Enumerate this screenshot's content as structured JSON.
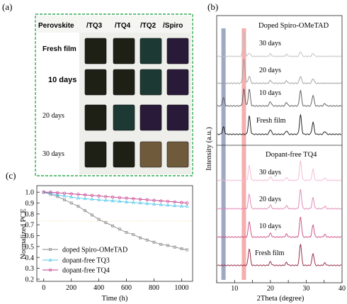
{
  "panel_a": {
    "label": "(a)",
    "columns": [
      "Perovskite",
      "/TQ3",
      "/TQ4",
      "/TQ2",
      "/Spiro"
    ],
    "rows": [
      "Fresh film",
      "10 days",
      "20 days",
      "30 days"
    ],
    "colors": {
      "sample_dark": "#1e2016",
      "sample_teal": "#1c3a33",
      "sample_violet": "#2a1a3a",
      "degraded": "#6f5a3c",
      "border_green": "#33aa55"
    }
  },
  "panel_b": {
    "label": "(b)",
    "groups": [
      "Doped Spiro-OMeTAD",
      "Dopant-free TQ4"
    ],
    "curve_labels_top": [
      "30 days",
      "20 days",
      "10 days",
      "Fresh film"
    ],
    "curve_labels_bottom": [
      "30 days",
      "20 days",
      "10 days",
      "Fresh film"
    ],
    "ylabel": "Intensity (a.u.)",
    "xlabel": "2Theta (degree)",
    "colors": {
      "gray_band": "#8e9ab8",
      "red_band": "#f3a0a0",
      "top_series": [
        "#bdbdbd",
        "#9a9a9a",
        "#555555",
        "#111111"
      ],
      "bottom_series": [
        "#f2b6d2",
        "#e07fb0",
        "#c8447c",
        "#8e1c3a"
      ]
    }
  },
  "panel_c": {
    "label": "(c)"
  },
  "chart_data": [
    {
      "type": "line",
      "title": "",
      "xlabel": "2Theta (degree)",
      "ylabel": "Intensity (a.u.)",
      "xlim": [
        5,
        40
      ],
      "x_ticks": [
        5,
        10,
        15,
        20,
        25,
        30,
        35,
        40
      ],
      "highlight_bands": [
        {
          "center": 6.9,
          "color": "gray"
        },
        {
          "center": 12.6,
          "color": "red"
        }
      ],
      "peaks_reference": [
        6.9,
        12.6,
        14.1,
        20.0,
        24.5,
        28.4,
        31.9,
        35.2,
        40.6
      ],
      "series": [
        {
          "name": "Doped Spiro-OMeTAD 30 days",
          "peaks": [
            [
              12.6,
              1.0
            ],
            [
              14.1,
              0.15
            ],
            [
              20.0,
              0.1
            ],
            [
              24.5,
              0.08
            ],
            [
              28.4,
              0.2
            ],
            [
              31.9,
              0.12
            ]
          ]
        },
        {
          "name": "Doped Spiro-OMeTAD 20 days",
          "peaks": [
            [
              12.6,
              1.0
            ],
            [
              14.1,
              0.3
            ],
            [
              20.0,
              0.12
            ],
            [
              24.5,
              0.1
            ],
            [
              28.4,
              0.3
            ],
            [
              31.9,
              0.2
            ]
          ]
        },
        {
          "name": "Doped Spiro-OMeTAD 10 days",
          "peaks": [
            [
              6.9,
              0.35
            ],
            [
              12.6,
              0.7
            ],
            [
              14.1,
              0.7
            ],
            [
              20.0,
              0.18
            ],
            [
              24.5,
              0.15
            ],
            [
              28.4,
              0.65
            ],
            [
              31.9,
              0.45
            ],
            [
              35.2,
              0.1
            ]
          ]
        },
        {
          "name": "Doped Spiro-OMeTAD Fresh film",
          "peaks": [
            [
              6.9,
              0.3
            ],
            [
              14.1,
              0.75
            ],
            [
              20.0,
              0.2
            ],
            [
              24.5,
              0.15
            ],
            [
              28.4,
              0.8
            ],
            [
              31.9,
              0.5
            ],
            [
              35.2,
              0.12
            ]
          ]
        },
        {
          "name": "Dopant-free TQ4 30 days",
          "peaks": [
            [
              14.1,
              0.6
            ],
            [
              20.0,
              0.15
            ],
            [
              24.5,
              0.12
            ],
            [
              28.4,
              0.8
            ],
            [
              31.9,
              0.45
            ],
            [
              35.2,
              0.1
            ]
          ]
        },
        {
          "name": "Dopant-free TQ4 20 days",
          "peaks": [
            [
              14.1,
              0.6
            ],
            [
              20.0,
              0.15
            ],
            [
              24.5,
              0.12
            ],
            [
              28.4,
              0.8
            ],
            [
              31.9,
              0.45
            ],
            [
              35.2,
              0.1
            ]
          ]
        },
        {
          "name": "Dopant-free TQ4 10 days",
          "peaks": [
            [
              14.1,
              0.65
            ],
            [
              20.0,
              0.15
            ],
            [
              24.5,
              0.12
            ],
            [
              28.4,
              0.85
            ],
            [
              31.9,
              0.5
            ],
            [
              35.2,
              0.1
            ]
          ]
        },
        {
          "name": "Dopant-free TQ4 Fresh film",
          "peaks": [
            [
              14.1,
              0.7
            ],
            [
              20.0,
              0.15
            ],
            [
              24.5,
              0.12
            ],
            [
              28.4,
              0.9
            ],
            [
              31.9,
              0.5
            ],
            [
              35.2,
              0.1
            ]
          ]
        }
      ]
    },
    {
      "type": "line",
      "title": "",
      "xlabel": "Time (h)",
      "ylabel": "Normalized PCE",
      "xlim": [
        -50,
        1080
      ],
      "ylim": [
        0.18,
        1.06
      ],
      "x_ticks": [
        0,
        200,
        400,
        600,
        800,
        1000
      ],
      "y_ticks": [
        0.2,
        0.3,
        0.4,
        0.5,
        0.6,
        0.7,
        0.8,
        0.9,
        1.0
      ],
      "legend_position": "bottom-left",
      "series": [
        {
          "name": "doped Spiro-OMeTAD",
          "color": "#8a8a8a",
          "marker": "square",
          "x": [
            0,
            50,
            100,
            150,
            200,
            250,
            300,
            350,
            400,
            450,
            500,
            550,
            600,
            650,
            700,
            750,
            800,
            850,
            900,
            950,
            1000,
            1040
          ],
          "y": [
            1.0,
            0.98,
            0.96,
            0.93,
            0.9,
            0.87,
            0.83,
            0.79,
            0.75,
            0.72,
            0.69,
            0.66,
            0.63,
            0.61,
            0.58,
            0.56,
            0.54,
            0.52,
            0.51,
            0.495,
            0.48,
            0.47
          ]
        },
        {
          "name": "dopant-free TQ3",
          "color": "#55c8ee",
          "marker": "triangle",
          "x": [
            0,
            50,
            100,
            150,
            200,
            250,
            300,
            350,
            400,
            450,
            500,
            550,
            600,
            650,
            700,
            750,
            800,
            850,
            900,
            950,
            1000,
            1040
          ],
          "y": [
            1.0,
            0.99,
            0.975,
            0.965,
            0.955,
            0.945,
            0.94,
            0.935,
            0.93,
            0.925,
            0.92,
            0.915,
            0.91,
            0.905,
            0.9,
            0.895,
            0.89,
            0.885,
            0.88,
            0.875,
            0.87,
            0.87
          ]
        },
        {
          "name": "dopant-free TQ4",
          "color": "#c83c8c",
          "marker": "circle",
          "x": [
            0,
            50,
            100,
            150,
            200,
            250,
            300,
            350,
            400,
            450,
            500,
            550,
            600,
            650,
            700,
            750,
            800,
            850,
            900,
            950,
            1000,
            1040
          ],
          "y": [
            1.0,
            1.0,
            0.995,
            0.99,
            0.985,
            0.98,
            0.975,
            0.97,
            0.965,
            0.96,
            0.955,
            0.95,
            0.945,
            0.94,
            0.935,
            0.93,
            0.925,
            0.92,
            0.915,
            0.91,
            0.905,
            0.9
          ]
        }
      ]
    }
  ]
}
